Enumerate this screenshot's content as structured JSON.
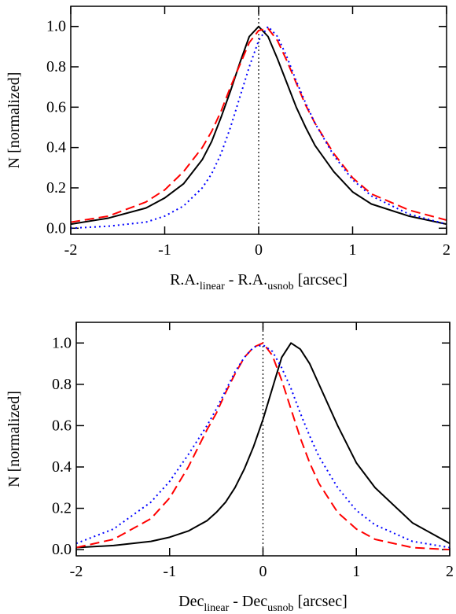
{
  "chart_data": [
    {
      "type": "line",
      "ylabel": "N [normalized]",
      "xlabel": [
        {
          "text": "R.A."
        },
        {
          "sub": "linear"
        },
        {
          "text": " - R.A."
        },
        {
          "sub": "usnob"
        },
        {
          "text": " [arcsec]"
        }
      ],
      "xlim": [
        -2,
        2
      ],
      "xticks": [
        -2,
        -1,
        0,
        1,
        2
      ],
      "ylim": [
        -0.03,
        1.1
      ],
      "yticks": [
        {
          "value": 0,
          "label": "0.0"
        },
        0.2,
        0.4,
        0.6,
        0.8,
        {
          "value": 1,
          "label": "1.0"
        }
      ],
      "vline": 0,
      "x": [
        -2,
        -1.6,
        -1.2,
        -1,
        -0.8,
        -0.6,
        -0.5,
        -0.4,
        -0.3,
        -0.2,
        -0.1,
        0,
        0.1,
        0.2,
        0.3,
        0.4,
        0.5,
        0.6,
        0.8,
        1,
        1.2,
        1.6,
        2
      ],
      "series": [
        {
          "color": "#000000",
          "style": "solid",
          "values": [
            0.02,
            0.05,
            0.1,
            0.15,
            0.22,
            0.34,
            0.43,
            0.55,
            0.68,
            0.82,
            0.95,
            1.0,
            0.95,
            0.84,
            0.72,
            0.6,
            0.5,
            0.41,
            0.28,
            0.18,
            0.12,
            0.06,
            0.02
          ]
        },
        {
          "color": "#ff0000",
          "style": "dashed",
          "values": [
            0.03,
            0.06,
            0.13,
            0.19,
            0.28,
            0.4,
            0.48,
            0.58,
            0.7,
            0.81,
            0.92,
            0.98,
            0.99,
            0.93,
            0.83,
            0.72,
            0.61,
            0.52,
            0.37,
            0.25,
            0.17,
            0.09,
            0.04
          ]
        },
        {
          "color": "#0000ff",
          "style": "dotted",
          "values": [
            0.0,
            0.01,
            0.03,
            0.06,
            0.11,
            0.2,
            0.27,
            0.37,
            0.5,
            0.65,
            0.8,
            0.93,
            1.0,
            0.95,
            0.85,
            0.73,
            0.62,
            0.52,
            0.36,
            0.24,
            0.16,
            0.07,
            0.02
          ]
        }
      ]
    },
    {
      "type": "line",
      "ylabel": "N [normalized]",
      "xlabel": [
        {
          "text": "Dec"
        },
        {
          "sub": "linear"
        },
        {
          "text": " - Dec"
        },
        {
          "sub": "usnob"
        },
        {
          "text": " [arcsec]"
        }
      ],
      "xlim": [
        -2,
        2
      ],
      "xticks": [
        -2,
        -1,
        0,
        1,
        2
      ],
      "ylim": [
        -0.03,
        1.1
      ],
      "yticks": [
        {
          "value": 0,
          "label": "0.0"
        },
        0.2,
        0.4,
        0.6,
        0.8,
        {
          "value": 1,
          "label": "1.0"
        }
      ],
      "vline": 0,
      "x": [
        -2,
        -1.6,
        -1.2,
        -1,
        -0.8,
        -0.6,
        -0.5,
        -0.4,
        -0.3,
        -0.2,
        -0.1,
        0,
        0.1,
        0.2,
        0.3,
        0.4,
        0.5,
        0.6,
        0.8,
        1,
        1.2,
        1.6,
        2
      ],
      "series": [
        {
          "color": "#000000",
          "style": "solid",
          "values": [
            0.01,
            0.02,
            0.04,
            0.06,
            0.09,
            0.14,
            0.18,
            0.23,
            0.3,
            0.39,
            0.5,
            0.63,
            0.78,
            0.93,
            1.0,
            0.97,
            0.9,
            0.8,
            0.6,
            0.42,
            0.3,
            0.13,
            0.03
          ]
        },
        {
          "color": "#ff0000",
          "style": "dashed",
          "values": [
            0.01,
            0.05,
            0.15,
            0.25,
            0.4,
            0.58,
            0.66,
            0.76,
            0.85,
            0.93,
            0.98,
            1.0,
            0.94,
            0.82,
            0.68,
            0.54,
            0.42,
            0.32,
            0.18,
            0.1,
            0.05,
            0.01,
            0.0
          ]
        },
        {
          "color": "#0000ff",
          "style": "dotted",
          "values": [
            0.03,
            0.1,
            0.23,
            0.33,
            0.46,
            0.6,
            0.68,
            0.77,
            0.86,
            0.93,
            0.98,
            0.99,
            0.96,
            0.88,
            0.78,
            0.66,
            0.55,
            0.45,
            0.3,
            0.19,
            0.12,
            0.04,
            0.01
          ]
        }
      ]
    }
  ]
}
